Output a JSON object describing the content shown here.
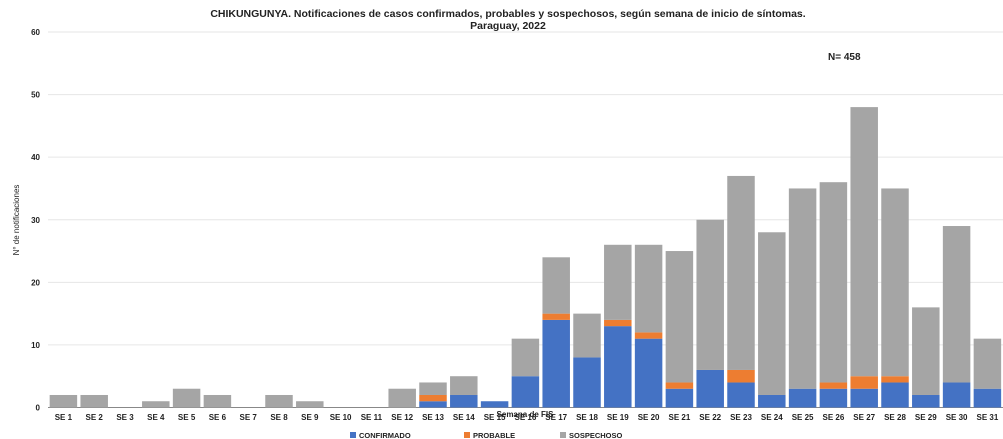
{
  "chart_data": {
    "type": "bar",
    "stacked": true,
    "title": "CHIKUNGUNYA. Notificaciones de casos confirmados, probables y sospechosos, según semana de inicio de síntomas.",
    "subtitle": "Paraguay, 2022",
    "annotation": "N= 458",
    "xlabel": "Semana de FIS",
    "ylabel": "N° de notificaciones",
    "ylim": [
      0,
      60
    ],
    "yticks": [
      0,
      10,
      20,
      30,
      40,
      50,
      60
    ],
    "grid": true,
    "legend_position": "bottom",
    "categories": [
      "SE 1",
      "SE 2",
      "SE 3",
      "SE 4",
      "SE 5",
      "SE 6",
      "SE 7",
      "SE 8",
      "SE 9",
      "SE 10",
      "SE 11",
      "SE 12",
      "SE 13",
      "SE 14",
      "SE 15",
      "SE 16",
      "SE 17",
      "SE 18",
      "SE 19",
      "SE 20",
      "SE 21",
      "SE 22",
      "SE 23",
      "SE 24",
      "SE 25",
      "SE 26",
      "SE 27",
      "SE 28",
      "SE 29",
      "SE 30",
      "SE 31"
    ],
    "series": [
      {
        "name": "CONFIRMADO",
        "color": "#4472C4",
        "values": [
          0,
          0,
          0,
          0,
          0,
          0,
          0,
          0,
          0,
          0,
          0,
          0,
          1,
          2,
          1,
          5,
          14,
          8,
          13,
          11,
          3,
          6,
          4,
          2,
          3,
          3,
          3,
          4,
          2,
          4,
          3
        ]
      },
      {
        "name": "PROBABLE",
        "color": "#ED7D31",
        "values": [
          0,
          0,
          0,
          0,
          0,
          0,
          0,
          0,
          0,
          0,
          0,
          0,
          1,
          0,
          0,
          0,
          1,
          0,
          1,
          1,
          1,
          0,
          2,
          0,
          0,
          1,
          2,
          1,
          0,
          0,
          0
        ]
      },
      {
        "name": "SOSPECHOSO",
        "color": "#A5A5A5",
        "values": [
          2,
          2,
          0,
          1,
          3,
          2,
          0,
          2,
          1,
          0,
          0,
          3,
          2,
          3,
          0,
          6,
          9,
          7,
          12,
          14,
          21,
          24,
          31,
          26,
          32,
          32,
          43,
          30,
          14,
          25,
          8
        ]
      }
    ]
  }
}
